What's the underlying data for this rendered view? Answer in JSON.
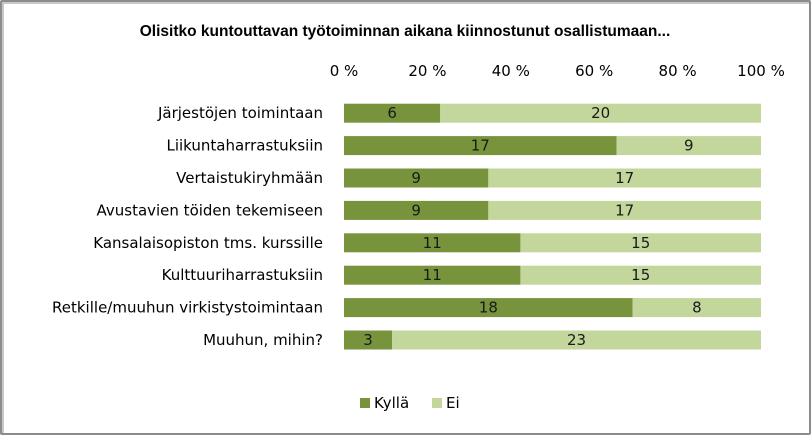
{
  "chart_data": {
    "type": "bar",
    "orientation": "horizontal",
    "stacked": "percent",
    "title": "Olisitko kuntouttavan työtoiminnan aikana kiinnostunut osallistumaan...",
    "categories": [
      "Järjestöjen toimintaan",
      "Liikuntaharrastuksiin",
      "Vertaistukiryhmään",
      "Avustavien töiden tekemiseen",
      "Kansalaisopiston tms. kurssille",
      "Kulttuuriharrastuksiin",
      "Retkille/muuhun virkistystoimintaan",
      "Muuhun, mihin?"
    ],
    "series": [
      {
        "name": "Kyllä",
        "values": [
          6,
          17,
          9,
          9,
          11,
          11,
          18,
          3
        ],
        "color": "#77933c"
      },
      {
        "name": "Ei",
        "values": [
          20,
          9,
          17,
          17,
          15,
          15,
          8,
          23
        ],
        "color": "#c3d69b"
      }
    ],
    "xticks": [
      "0 %",
      "20 %",
      "40 %",
      "60 %",
      "80 %",
      "100 %"
    ],
    "xlim": [
      0,
      100
    ],
    "axis_position": "top",
    "legend_position": "bottom",
    "grid": false
  }
}
